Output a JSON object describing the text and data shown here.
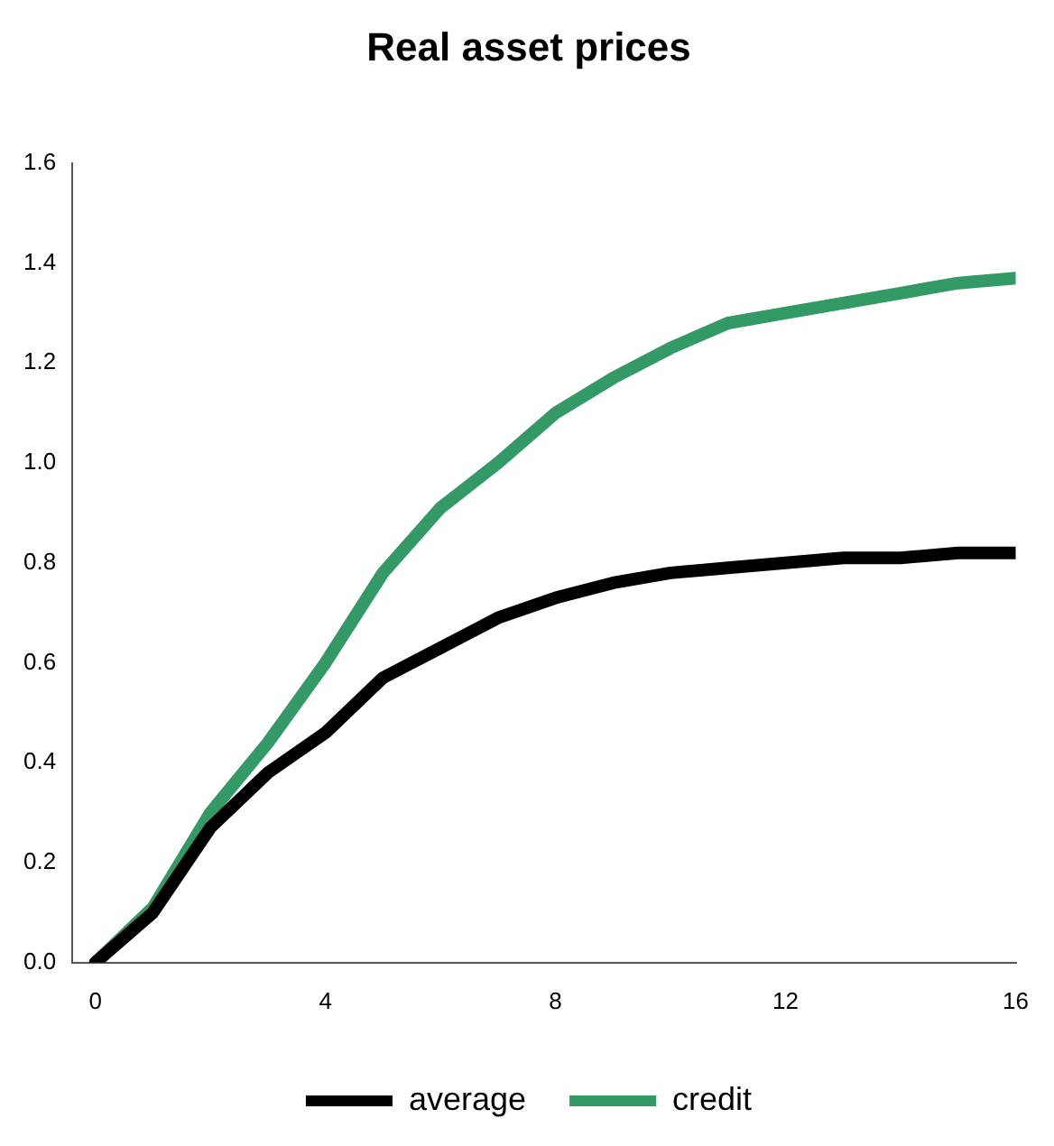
{
  "chart_data": {
    "type": "line",
    "title": "Real asset prices",
    "x": [
      0,
      1,
      2,
      3,
      4,
      5,
      6,
      7,
      8,
      9,
      10,
      11,
      12,
      13,
      14,
      15,
      16
    ],
    "series": [
      {
        "name": "average",
        "color": "#000000",
        "values": [
          0,
          0.1,
          0.27,
          0.38,
          0.46,
          0.57,
          0.63,
          0.69,
          0.73,
          0.76,
          0.78,
          0.79,
          0.8,
          0.81,
          0.81,
          0.82,
          0.82
        ]
      },
      {
        "name": "credit",
        "color": "#339966",
        "values": [
          0,
          0.11,
          0.3,
          0.44,
          0.6,
          0.78,
          0.91,
          1.0,
          1.1,
          1.17,
          1.23,
          1.28,
          1.3,
          1.32,
          1.34,
          1.36,
          1.37
        ]
      }
    ],
    "xlim": [
      -0.4,
      16
    ],
    "xticks": [
      0,
      4,
      8,
      12,
      16
    ],
    "ylim": [
      0,
      1.6
    ],
    "yticks": [
      {
        "value": 0,
        "label": "0.0"
      },
      {
        "value": 0.2,
        "label": "0.2"
      },
      {
        "value": 0.4,
        "label": "0.4"
      },
      {
        "value": 0.6,
        "label": "0.6"
      },
      {
        "value": 0.8,
        "label": "0.8"
      },
      {
        "value": 1,
        "label": "1.0"
      },
      {
        "value": 1.2,
        "label": "1.2"
      },
      {
        "value": 1.4,
        "label": "1.4"
      },
      {
        "value": 1.6,
        "label": "1.6"
      }
    ],
    "grid": false,
    "legend": "bottom",
    "marker": "none",
    "line_style": "solid"
  }
}
